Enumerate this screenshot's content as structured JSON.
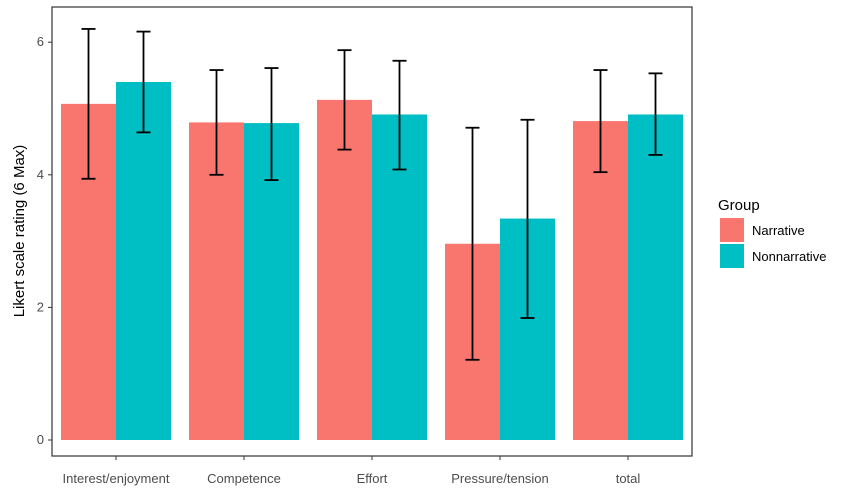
{
  "chart_data": {
    "type": "bar",
    "title": "",
    "xlabel": "",
    "ylabel": "Likert scale rating (6 Max)",
    "ylim": [
      0,
      6.6
    ],
    "yticks": [
      0,
      2,
      4,
      6
    ],
    "categories": [
      "Interest/enjoyment",
      "Competence",
      "Effort",
      "Pressure/tension",
      "total"
    ],
    "series": [
      {
        "name": "Narrative",
        "color": "#F8766D",
        "values": [
          5.07,
          4.79,
          5.13,
          2.96,
          4.81
        ],
        "error_low": [
          3.94,
          4.0,
          4.38,
          1.21,
          4.04
        ],
        "error_high": [
          6.2,
          5.58,
          5.88,
          4.71,
          5.58
        ]
      },
      {
        "name": "Nonnarrative",
        "color": "#00BFC4",
        "values": [
          5.4,
          4.78,
          4.91,
          3.34,
          4.91
        ],
        "error_low": [
          4.64,
          3.92,
          4.08,
          1.84,
          4.3
        ],
        "error_high": [
          6.16,
          5.61,
          5.72,
          4.83,
          5.53
        ]
      }
    ],
    "legend": {
      "title": "Group",
      "position": "right"
    },
    "grid": false
  }
}
